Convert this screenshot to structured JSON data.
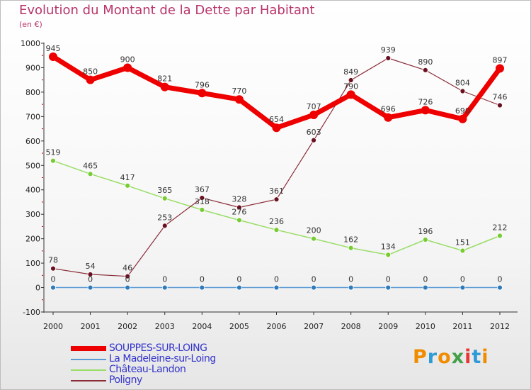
{
  "title": "Evolution du Montant de la Dette par Habitant",
  "unit_label": "(en €)",
  "logo": {
    "letters": [
      "P",
      "r",
      "o",
      "x",
      "i",
      "t",
      "i"
    ],
    "colors": [
      "#f08c00",
      "#2e9bd6",
      "#f08c00",
      "#43a047",
      "#e53935",
      "#2e9bd6",
      "#f08c00"
    ]
  },
  "chart_data": {
    "type": "line",
    "title": "Evolution du Montant de la Dette par Habitant",
    "ylabel": "(en €)",
    "xlabel": "",
    "x": [
      "2000",
      "2001",
      "2002",
      "2003",
      "2004",
      "2005",
      "2006",
      "2007",
      "2008",
      "2009",
      "2010",
      "2011",
      "2012"
    ],
    "ylim": [
      -100,
      1000
    ],
    "yticks": [
      "-100",
      "0",
      "100",
      "200",
      "300",
      "400",
      "500",
      "600",
      "700",
      "800",
      "900",
      "1000"
    ],
    "grid": false,
    "legend_position": "bottom-left",
    "series": [
      {
        "name": "SOUPPES-SUR-LOING",
        "color": "#ee0000",
        "marker": "#ee0000",
        "values": [
          945,
          850,
          900,
          821,
          796,
          770,
          654,
          707,
          790,
          696,
          726,
          690,
          897
        ]
      },
      {
        "name": "La Madeleine-sur-Loing",
        "color": "#5b9bd5",
        "marker": "#2f7ab8",
        "values": [
          0,
          0,
          0,
          0,
          0,
          0,
          0,
          0,
          0,
          0,
          0,
          0,
          0
        ]
      },
      {
        "name": "Château-Landon",
        "color": "#99dd66",
        "marker": "#77cc33",
        "values": [
          519,
          465,
          417,
          365,
          318,
          276,
          236,
          200,
          162,
          134,
          196,
          151,
          212
        ]
      },
      {
        "name": "Poligny",
        "color": "#8b2e3a",
        "marker": "#6b1020",
        "values": [
          78,
          54,
          46,
          253,
          367,
          328,
          361,
          603,
          849,
          939,
          890,
          804,
          746
        ]
      }
    ]
  }
}
